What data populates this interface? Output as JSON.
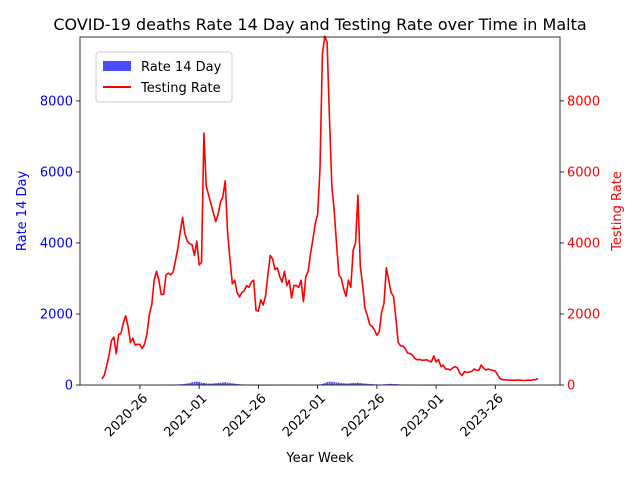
{
  "chart_data": {
    "type": "bar+line",
    "title": "COVID-19 deaths Rate 14 Day and Testing Rate over Time in Malta",
    "xlabel": "Year Week",
    "y_left_label": "Rate 14 Day",
    "y_right_label": "Testing Rate",
    "y_left_range": [
      0,
      9800
    ],
    "y_right_range": [
      0,
      9800
    ],
    "y_ticks": [
      "0",
      "2000",
      "4000",
      "6000",
      "8000"
    ],
    "y_tick_values": [
      0,
      2000,
      4000,
      6000,
      8000
    ],
    "x_tick_labels": [
      "2020-26",
      "2021-01",
      "2021-26",
      "2022-01",
      "2022-26",
      "2023-01",
      "2023-26"
    ],
    "legend": {
      "position": "top-left",
      "entries": [
        "Rate 14 Day",
        "Testing Rate"
      ]
    },
    "colors": {
      "bar": "#0000ff",
      "line": "#ff0000",
      "left_axis": "#0000ff",
      "right_axis": "#ff0000"
    },
    "series": [
      {
        "name": "Testing Rate",
        "kind": "line",
        "values": [
          170,
          280,
          550,
          850,
          1250,
          1350,
          880,
          1420,
          1450,
          1750,
          1950,
          1650,
          1200,
          1320,
          1120,
          1150,
          1140,
          1030,
          1160,
          1450,
          2000,
          2250,
          2950,
          3200,
          2950,
          2550,
          2550,
          3100,
          3150,
          3100,
          3180,
          3500,
          3850,
          4300,
          4720,
          4250,
          4050,
          3980,
          3950,
          3650,
          4050,
          3380,
          3450,
          7100,
          5600,
          5350,
          5100,
          4850,
          4600,
          4800,
          5150,
          5300,
          5750,
          4300,
          3550,
          2850,
          2950,
          2600,
          2480,
          2600,
          2650,
          2800,
          2750,
          2900,
          2950,
          2100,
          2080,
          2400,
          2250,
          2500,
          3100,
          3650,
          3550,
          3250,
          3300,
          3050,
          2900,
          3200,
          2800,
          2950,
          2450,
          2800,
          2800,
          2750,
          2950,
          2350,
          3050,
          3200,
          3700,
          4100,
          4550,
          4800,
          6100,
          9300,
          9820,
          9650,
          7500,
          5600,
          4900,
          3950,
          3100,
          3000,
          2700,
          2500,
          2950,
          2750,
          3800,
          4000,
          5350,
          3350,
          2800,
          2150,
          1950,
          1700,
          1650,
          1550,
          1400,
          1500,
          2050,
          2300,
          3300,
          2950,
          2600,
          2500,
          1900,
          1200,
          1100,
          1100,
          1020,
          900,
          880,
          850,
          750,
          710,
          720,
          700,
          700,
          710,
          680,
          650,
          820,
          650,
          720,
          520,
          560,
          450,
          450,
          420,
          480,
          520,
          480,
          330,
          270,
          380,
          350,
          370,
          380,
          450,
          420,
          410,
          560,
          480,
          420,
          450,
          430,
          410,
          390,
          280,
          180,
          150,
          150,
          140,
          140,
          140,
          130,
          140,
          140,
          130,
          130,
          130,
          140,
          130,
          150,
          150,
          190
        ]
      },
      {
        "name": "Rate 14 Day",
        "kind": "bar",
        "values": [
          0,
          0,
          0,
          0,
          0,
          0,
          0,
          0,
          0,
          0,
          0,
          0,
          0,
          0,
          0,
          0,
          0,
          0,
          0,
          0,
          0,
          0,
          0,
          0,
          0,
          0,
          0,
          0,
          5,
          8,
          6,
          10,
          14,
          20,
          26,
          32,
          45,
          55,
          75,
          85,
          95,
          88,
          70,
          55,
          48,
          42,
          40,
          45,
          52,
          58,
          65,
          70,
          75,
          66,
          55,
          48,
          40,
          30,
          22,
          16,
          12,
          8,
          5,
          4,
          3,
          3,
          2,
          2,
          1,
          1,
          1,
          1,
          2,
          3,
          4,
          6,
          8,
          10,
          10,
          8,
          6,
          5,
          4,
          3,
          3,
          2,
          2,
          3,
          4,
          5,
          6,
          8,
          15,
          30,
          55,
          80,
          95,
          90,
          80,
          72,
          65,
          55,
          48,
          42,
          45,
          52,
          58,
          62,
          65,
          58,
          48,
          40,
          35,
          30,
          25,
          20,
          15,
          10,
          12,
          18,
          25,
          30,
          32,
          30,
          25,
          20,
          15,
          10,
          8,
          6,
          5,
          4,
          3,
          3,
          2,
          2,
          2,
          2,
          1,
          1,
          1,
          1,
          1,
          1,
          1,
          1,
          0,
          0,
          0,
          0,
          0,
          0,
          0,
          0,
          0,
          0,
          0,
          0,
          0,
          0,
          0,
          0,
          0,
          0,
          0,
          0,
          0,
          0,
          0,
          0,
          0,
          0,
          0,
          0,
          0,
          0,
          0,
          0,
          0,
          0,
          0,
          0,
          0,
          0,
          0,
          0,
          0
        ]
      }
    ]
  }
}
